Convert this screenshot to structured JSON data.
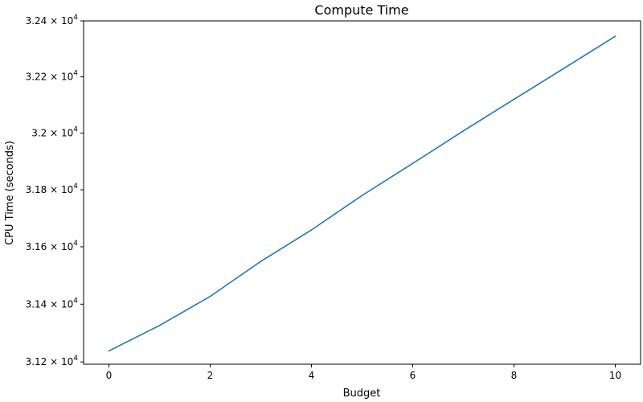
{
  "chart_data": {
    "type": "line",
    "title": "Compute Time",
    "xlabel": "Budget",
    "ylabel": "CPU Time (seconds)",
    "yscale": "log",
    "grid": false,
    "legend": "none",
    "xlim": [
      -0.5,
      10.5
    ],
    "ylim": [
      31192,
      32400
    ],
    "xticks": [
      0,
      2,
      4,
      6,
      8,
      10
    ],
    "xtick_labels": [
      "0",
      "2",
      "4",
      "6",
      "8",
      "10"
    ],
    "yticks": [
      31200,
      31400,
      31600,
      31800,
      32000,
      32200,
      32400
    ],
    "ytick_labels": [
      {
        "mantissa": "3.12",
        "exponent": "4"
      },
      {
        "mantissa": "3.14",
        "exponent": "4"
      },
      {
        "mantissa": "3.16",
        "exponent": "4"
      },
      {
        "mantissa": "3.18",
        "exponent": "4"
      },
      {
        "mantissa": "3.2",
        "exponent": "4"
      },
      {
        "mantissa": "3.22",
        "exponent": "4"
      },
      {
        "mantissa": "3.24",
        "exponent": "4"
      }
    ],
    "series": [
      {
        "color": "#1f77b4",
        "x": [
          0,
          1,
          2,
          3,
          4,
          5,
          6,
          7,
          8,
          9,
          10
        ],
        "y": [
          31238,
          31326,
          31427,
          31549,
          31659,
          31780,
          31893,
          32008,
          32120,
          32232,
          32345
        ]
      }
    ]
  }
}
